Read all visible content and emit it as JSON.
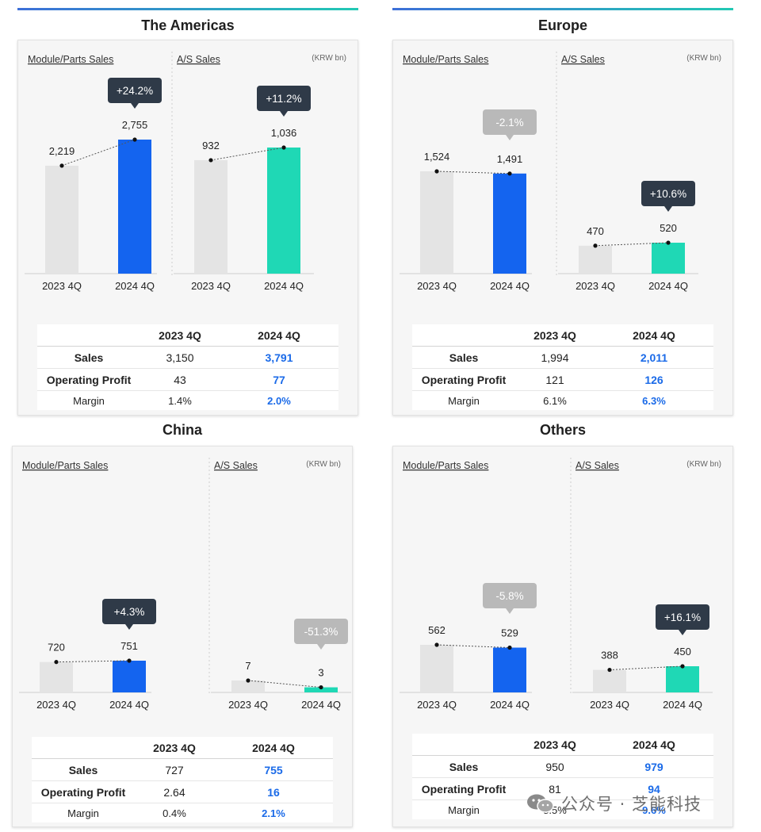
{
  "unit_label": "(KRW bn)",
  "section_labels": {
    "module": "Module/Parts Sales",
    "as": "A/S Sales"
  },
  "table_headers": {
    "col1": "2023 4Q",
    "col2": "2024 4Q"
  },
  "row_labels": {
    "sales": "Sales",
    "op": "Operating Profit",
    "margin": "Margin"
  },
  "colors": {
    "prev": "#e4e4e4",
    "module": "#1464ef",
    "as": "#1fd8b5",
    "badge_dark": "#2f3a48",
    "badge_gray": "#b9b9b9",
    "highlight": "#1a6ae8"
  },
  "watermark": {
    "text": "公众号 · 芝能科技"
  },
  "chart_data": [
    {
      "type": "bar",
      "region": "The Americas",
      "module": {
        "title": "Module/Parts Sales",
        "categories": [
          "2023 4Q",
          "2024 4Q"
        ],
        "values": [
          2219,
          2755
        ],
        "labels": [
          "2,219",
          "2,755"
        ],
        "change": "+24.2%",
        "change_style": "dark"
      },
      "as": {
        "title": "A/S Sales",
        "categories": [
          "2023 4Q",
          "2024 4Q"
        ],
        "values": [
          932,
          1036
        ],
        "labels": [
          "932",
          "1,036"
        ],
        "change": "+11.2%",
        "change_style": "dark"
      },
      "table": {
        "sales": [
          "3,150",
          "3,791"
        ],
        "op": [
          "43",
          "77"
        ],
        "margin": [
          "1.4%",
          "2.0%"
        ]
      }
    },
    {
      "type": "bar",
      "region": "Europe",
      "module": {
        "title": "Module/Parts Sales",
        "categories": [
          "2023 4Q",
          "2024 4Q"
        ],
        "values": [
          1524,
          1491
        ],
        "labels": [
          "1,524",
          "1,491"
        ],
        "change": "-2.1%",
        "change_style": "gray"
      },
      "as": {
        "title": "A/S Sales",
        "categories": [
          "2023 4Q",
          "2024 4Q"
        ],
        "values": [
          470,
          520
        ],
        "labels": [
          "470",
          "520"
        ],
        "change": "+10.6%",
        "change_style": "dark"
      },
      "table": {
        "sales": [
          "1,994",
          "2,011"
        ],
        "op": [
          "121",
          "126"
        ],
        "margin": [
          "6.1%",
          "6.3%"
        ]
      }
    },
    {
      "type": "bar",
      "region": "China",
      "module": {
        "title": "Module/Parts Sales",
        "categories": [
          "2023 4Q",
          "2024 4Q"
        ],
        "values": [
          720,
          751
        ],
        "labels": [
          "720",
          "751"
        ],
        "change": "+4.3%",
        "change_style": "dark"
      },
      "as": {
        "title": "A/S Sales",
        "categories": [
          "2023 4Q",
          "2024 4Q"
        ],
        "values": [
          7,
          3
        ],
        "labels": [
          "7",
          "3"
        ],
        "change": "-51.3%",
        "change_style": "gray"
      },
      "table": {
        "sales": [
          "727",
          "755"
        ],
        "op": [
          "2.64",
          "16"
        ],
        "margin": [
          "0.4%",
          "2.1%"
        ]
      }
    },
    {
      "type": "bar",
      "region": "Others",
      "module": {
        "title": "Module/Parts Sales",
        "categories": [
          "2023 4Q",
          "2024 4Q"
        ],
        "values": [
          562,
          529
        ],
        "labels": [
          "562",
          "529"
        ],
        "change": "-5.8%",
        "change_style": "gray"
      },
      "as": {
        "title": "A/S Sales",
        "categories": [
          "2023 4Q",
          "2024 4Q"
        ],
        "values": [
          388,
          450
        ],
        "labels": [
          "388",
          "450"
        ],
        "change": "+16.1%",
        "change_style": "dark"
      },
      "table": {
        "sales": [
          "950",
          "979"
        ],
        "op": [
          "81",
          "94"
        ],
        "margin": [
          "8.5%",
          "9.6%"
        ]
      }
    }
  ]
}
